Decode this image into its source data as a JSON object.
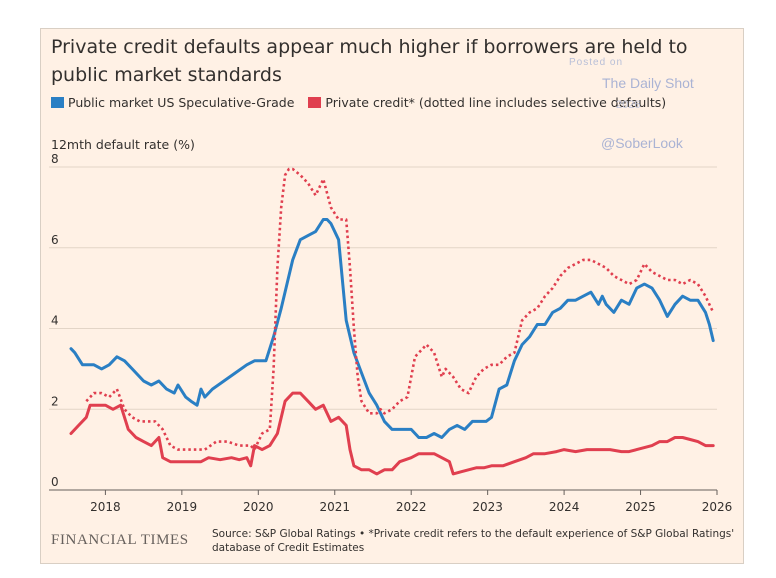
{
  "chart_data": {
    "type": "line",
    "title": "Private credit defaults appear much higher if borrowers are held to public market standards",
    "ylabel": "12mth default rate (%)",
    "ylim": [
      0,
      8
    ],
    "yticks": [
      "0",
      "2",
      "4",
      "6",
      "8"
    ],
    "xlim": [
      2017.55,
      2026.0
    ],
    "xticks": [
      "2018",
      "2019",
      "2020",
      "2021",
      "2022",
      "2023",
      "2024",
      "2025",
      "2026"
    ],
    "grid": true,
    "series": [
      {
        "name": "Public market US Speculative-Grade",
        "color": "#2a7fc4",
        "style": "solid",
        "x": [
          2017.55,
          2017.6,
          2017.7,
          2017.85,
          2017.95,
          2018.05,
          2018.15,
          2018.25,
          2018.35,
          2018.5,
          2018.6,
          2018.7,
          2018.8,
          2018.9,
          2018.95,
          2019.05,
          2019.12,
          2019.2,
          2019.25,
          2019.3,
          2019.4,
          2019.55,
          2019.7,
          2019.85,
          2019.95,
          2020.1,
          2020.2,
          2020.3,
          2020.45,
          2020.55,
          2020.65,
          2020.75,
          2020.85,
          2020.9,
          2020.95,
          2021.05,
          2021.15,
          2021.25,
          2021.35,
          2021.45,
          2021.55,
          2021.65,
          2021.75,
          2021.85,
          2022.0,
          2022.1,
          2022.2,
          2022.3,
          2022.4,
          2022.5,
          2022.6,
          2022.7,
          2022.8,
          2022.9,
          2022.98,
          2023.05,
          2023.15,
          2023.25,
          2023.35,
          2023.45,
          2023.55,
          2023.65,
          2023.75,
          2023.85,
          2023.95,
          2024.05,
          2024.15,
          2024.25,
          2024.35,
          2024.45,
          2024.5,
          2024.55,
          2024.65,
          2024.75,
          2024.85,
          2024.95,
          2025.05,
          2025.15,
          2025.25,
          2025.35,
          2025.45,
          2025.55,
          2025.65,
          2025.75,
          2025.85,
          2025.9,
          2025.95
        ],
        "y": [
          3.5,
          3.4,
          3.1,
          3.1,
          3.0,
          3.1,
          3.3,
          3.2,
          3.0,
          2.7,
          2.6,
          2.7,
          2.5,
          2.4,
          2.6,
          2.3,
          2.2,
          2.1,
          2.5,
          2.3,
          2.5,
          2.7,
          2.9,
          3.1,
          3.2,
          3.2,
          3.8,
          4.5,
          5.7,
          6.2,
          6.3,
          6.4,
          6.7,
          6.7,
          6.6,
          6.2,
          4.2,
          3.4,
          2.9,
          2.4,
          2.1,
          1.7,
          1.5,
          1.5,
          1.5,
          1.3,
          1.3,
          1.4,
          1.3,
          1.5,
          1.6,
          1.5,
          1.7,
          1.7,
          1.7,
          1.8,
          2.5,
          2.6,
          3.2,
          3.6,
          3.8,
          4.1,
          4.1,
          4.4,
          4.5,
          4.7,
          4.7,
          4.8,
          4.9,
          4.6,
          4.8,
          4.6,
          4.4,
          4.7,
          4.6,
          5.0,
          5.1,
          5.0,
          4.7,
          4.3,
          4.6,
          4.8,
          4.7,
          4.7,
          4.4,
          4.1,
          3.7
        ]
      },
      {
        "name": "Private credit* (dotted line includes selective defaults)",
        "color": "#e03f4f",
        "style": "solid",
        "x": [
          2017.55,
          2017.65,
          2017.75,
          2017.8,
          2017.9,
          2018.0,
          2018.1,
          2018.2,
          2018.3,
          2018.4,
          2018.5,
          2018.6,
          2018.7,
          2018.75,
          2018.85,
          2018.95,
          2019.05,
          2019.15,
          2019.25,
          2019.35,
          2019.5,
          2019.65,
          2019.75,
          2019.85,
          2019.9,
          2019.95,
          2020.05,
          2020.15,
          2020.25,
          2020.35,
          2020.45,
          2020.55,
          2020.65,
          2020.75,
          2020.85,
          2020.95,
          2021.05,
          2021.15,
          2021.2,
          2021.25,
          2021.35,
          2021.45,
          2021.55,
          2021.65,
          2021.75,
          2021.85,
          2022.0,
          2022.1,
          2022.2,
          2022.3,
          2022.4,
          2022.5,
          2022.55,
          2022.65,
          2022.75,
          2022.85,
          2022.95,
          2023.05,
          2023.2,
          2023.35,
          2023.5,
          2023.6,
          2023.75,
          2023.9,
          2024.0,
          2024.15,
          2024.3,
          2024.45,
          2024.6,
          2024.75,
          2024.85,
          2024.95,
          2025.05,
          2025.15,
          2025.25,
          2025.35,
          2025.45,
          2025.55,
          2025.65,
          2025.75,
          2025.85,
          2025.95
        ],
        "y": [
          1.4,
          1.6,
          1.8,
          2.1,
          2.1,
          2.1,
          2.0,
          2.1,
          1.5,
          1.3,
          1.2,
          1.1,
          1.3,
          0.8,
          0.7,
          0.7,
          0.7,
          0.7,
          0.7,
          0.8,
          0.75,
          0.8,
          0.75,
          0.8,
          0.6,
          1.1,
          1.0,
          1.1,
          1.4,
          2.2,
          2.4,
          2.4,
          2.2,
          2.0,
          2.1,
          1.7,
          1.8,
          1.6,
          1.0,
          0.6,
          0.5,
          0.5,
          0.4,
          0.5,
          0.5,
          0.7,
          0.8,
          0.9,
          0.9,
          0.9,
          0.8,
          0.7,
          0.4,
          0.45,
          0.5,
          0.55,
          0.55,
          0.6,
          0.6,
          0.7,
          0.8,
          0.9,
          0.9,
          0.95,
          1.0,
          0.95,
          1.0,
          1.0,
          1.0,
          0.95,
          0.95,
          1.0,
          1.05,
          1.1,
          1.2,
          1.2,
          1.3,
          1.3,
          1.25,
          1.2,
          1.1,
          1.1
        ]
      },
      {
        "name": "Private credit incl. selective defaults",
        "color": "#e03f4f",
        "style": "dotted",
        "x": [
          2017.75,
          2017.85,
          2017.95,
          2018.05,
          2018.15,
          2018.25,
          2018.35,
          2018.45,
          2018.55,
          2018.65,
          2018.75,
          2018.85,
          2018.95,
          2019.1,
          2019.2,
          2019.3,
          2019.45,
          2019.6,
          2019.75,
          2019.9,
          2019.95,
          2020.05,
          2020.15,
          2020.2,
          2020.25,
          2020.3,
          2020.35,
          2020.4,
          2020.45,
          2020.55,
          2020.65,
          2020.75,
          2020.8,
          2020.85,
          2020.95,
          2021.05,
          2021.15,
          2021.2,
          2021.25,
          2021.3,
          2021.35,
          2021.45,
          2021.55,
          2021.6,
          2021.65,
          2021.75,
          2021.85,
          2021.95,
          2022.05,
          2022.15,
          2022.2,
          2022.3,
          2022.4,
          2022.45,
          2022.55,
          2022.65,
          2022.75,
          2022.85,
          2022.95,
          2023.05,
          2023.15,
          2023.25,
          2023.35,
          2023.45,
          2023.55,
          2023.65,
          2023.75,
          2023.85,
          2023.95,
          2024.05,
          2024.15,
          2024.25,
          2024.35,
          2024.45,
          2024.55,
          2024.65,
          2024.75,
          2024.85,
          2024.95,
          2025.05,
          2025.15,
          2025.25,
          2025.35,
          2025.45,
          2025.55,
          2025.65,
          2025.75,
          2025.85,
          2025.95
        ],
        "y": [
          2.2,
          2.4,
          2.4,
          2.3,
          2.5,
          2.0,
          1.8,
          1.7,
          1.7,
          1.7,
          1.5,
          1.1,
          1.0,
          1.0,
          1.0,
          1.0,
          1.2,
          1.2,
          1.1,
          1.1,
          1.0,
          1.4,
          1.5,
          3.0,
          5.5,
          7.0,
          7.8,
          7.95,
          7.95,
          7.8,
          7.6,
          7.3,
          7.5,
          7.7,
          7.0,
          6.7,
          6.7,
          5.5,
          4.0,
          2.8,
          2.2,
          1.9,
          1.9,
          2.0,
          1.9,
          2.0,
          2.2,
          2.3,
          3.3,
          3.5,
          3.6,
          3.4,
          2.8,
          3.0,
          2.8,
          2.5,
          2.4,
          2.8,
          3.0,
          3.1,
          3.1,
          3.3,
          3.4,
          4.2,
          4.4,
          4.5,
          4.8,
          5.0,
          5.3,
          5.5,
          5.6,
          5.7,
          5.7,
          5.6,
          5.5,
          5.3,
          5.2,
          5.1,
          5.2,
          5.6,
          5.4,
          5.3,
          5.2,
          5.2,
          5.1,
          5.2,
          5.1,
          4.8,
          4.4
        ]
      }
    ]
  },
  "title": "Private credit defaults appear much higher if borrowers are held to public market standards",
  "legend": {
    "public": "Public market US Speculative-Grade",
    "private": "Private credit* (dotted line includes selective defaults)",
    "public_color": "#2a7fc4",
    "private_color": "#e03f4f"
  },
  "y_axis_label": "12mth default rate (%)",
  "watermark": {
    "posted": "Posted on",
    "publisher": "The Daily Shot",
    "date": "2026",
    "handle": "@SoberLook"
  },
  "footer": {
    "logo": "FINANCIAL TIMES",
    "source": "Source: S&P Global Ratings • *Private credit refers to the default experience of S&P Global Ratings' database of Credit Estimates"
  }
}
